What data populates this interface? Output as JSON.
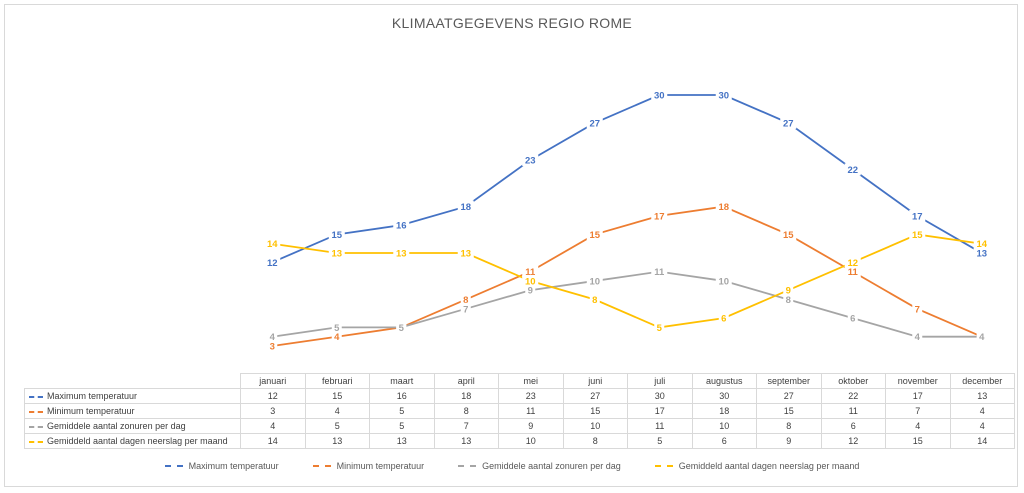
{
  "chart_data": {
    "type": "line",
    "title": "KLIMAATGEGEVENS REGIO ROME",
    "categories": [
      "januari",
      "februari",
      "maart",
      "april",
      "mei",
      "juni",
      "juli",
      "augustus",
      "september",
      "oktober",
      "november",
      "december"
    ],
    "series": [
      {
        "name": "Maximum temperatuur",
        "color": "#4472c4",
        "values": [
          12,
          15,
          16,
          18,
          23,
          27,
          30,
          30,
          27,
          22,
          17,
          13
        ]
      },
      {
        "name": "Minimum temperatuur",
        "color": "#ed7d31",
        "values": [
          3,
          4,
          5,
          8,
          11,
          15,
          17,
          18,
          15,
          11,
          7,
          4
        ]
      },
      {
        "name": "Gemiddele aantal zonuren per dag",
        "color": "#a5a5a5",
        "values": [
          4,
          5,
          5,
          7,
          9,
          10,
          11,
          10,
          8,
          6,
          4,
          4
        ]
      },
      {
        "name": "Gemiddeld aantal dagen neerslag per maand",
        "color": "#ffc000",
        "values": [
          14,
          13,
          13,
          13,
          10,
          8,
          5,
          6,
          9,
          12,
          15,
          14
        ]
      }
    ],
    "grid": false,
    "legend": "bottom",
    "data_table": true
  }
}
